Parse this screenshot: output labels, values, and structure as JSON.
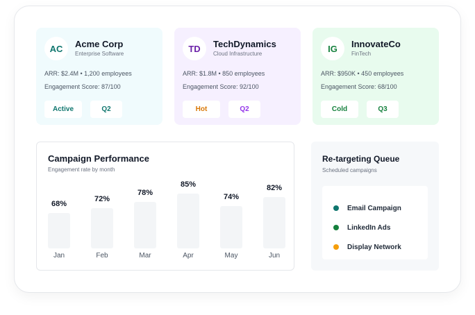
{
  "accounts": [
    {
      "initials": "AC",
      "company": "Acme Corp",
      "industry": "Enterprise Software",
      "arr_line": "ARR: $2.4M • 1,200 employees",
      "score_line": "Engagement Score: 87/100",
      "status": "Active",
      "quarter": "Q2"
    },
    {
      "initials": "TD",
      "company": "TechDynamics",
      "industry": "Cloud Infrastructure",
      "arr_line": "ARR: $1.8M • 850 employees",
      "score_line": "Engagement Score: 92/100",
      "status": "Hot",
      "quarter": "Q2"
    },
    {
      "initials": "IG",
      "company": "InnovateCo",
      "industry": "FinTech",
      "arr_line": "ARR: $950K • 450 employees",
      "score_line": "Engagement Score: 68/100",
      "status": "Cold",
      "quarter": "Q3"
    }
  ],
  "performance": {
    "title": "Campaign Performance",
    "subtitle": "Engagement rate by month"
  },
  "chart_data": {
    "type": "bar",
    "categories": [
      "Jan",
      "Feb",
      "Mar",
      "Apr",
      "May",
      "Jun"
    ],
    "values": [
      68,
      72,
      78,
      85,
      74,
      82
    ],
    "value_labels": [
      "68%",
      "72%",
      "78%",
      "85%",
      "74%",
      "82%"
    ],
    "title": "Campaign Performance",
    "subtitle": "Engagement rate by month",
    "grid": false
  },
  "queue": {
    "title": "Re-targeting Queue",
    "subtitle": "Scheduled campaigns",
    "items": [
      {
        "label": "Email Campaign",
        "color": "#0f766e"
      },
      {
        "label": "LinkedIn Ads",
        "color": "#15803d"
      },
      {
        "label": "Display Network",
        "color": "#f59e0b"
      }
    ]
  }
}
